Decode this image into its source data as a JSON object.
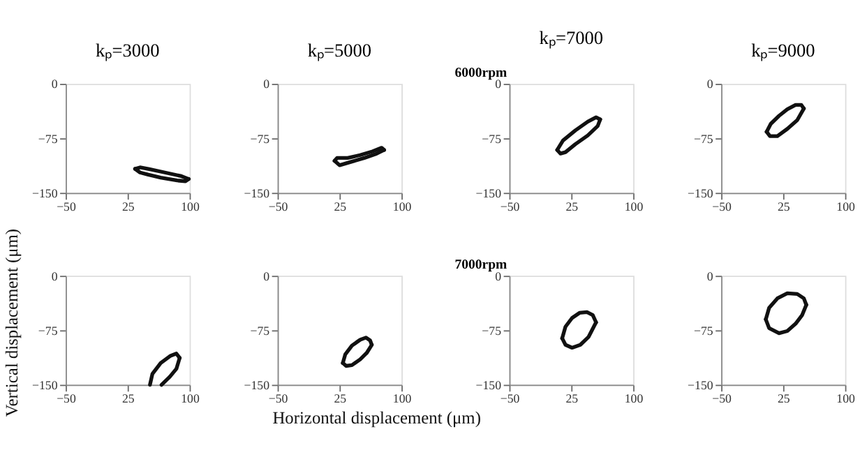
{
  "chart_data": [
    {
      "type": "line",
      "title": "kₚ=3000",
      "xlim": [
        -50,
        100
      ],
      "ylim": [
        -150,
        0
      ],
      "xticks": [
        -50,
        25,
        100
      ],
      "yticks": [
        -150,
        -75,
        0
      ],
      "grid": false,
      "legend": false,
      "line_style": "solid",
      "marker": "none",
      "series": [
        {
          "color": "#111111",
          "x": [
            34,
            40,
            50,
            70,
            90,
            99
          ],
          "values": [
            -117,
            -115,
            -117,
            -122,
            -127,
            -131
          ]
        },
        {
          "color": "#111111",
          "x": [
            34,
            40,
            50,
            65,
            85,
            95,
            99
          ],
          "values": [
            -117,
            -122,
            -125,
            -129,
            -133,
            -134,
            -131
          ]
        }
      ]
    },
    {
      "type": "line",
      "title": "kₚ=5000",
      "xlim": [
        -50,
        100
      ],
      "ylim": [
        -150,
        0
      ],
      "xticks": [
        -50,
        25,
        100
      ],
      "yticks": [
        -150,
        -75,
        0
      ],
      "grid": false,
      "legend": false,
      "line_style": "solid",
      "marker": "none",
      "series": [
        {
          "color": "#111111",
          "x": [
            19,
            22,
            35,
            50,
            65,
            76,
            79
          ],
          "values": [
            -106,
            -102,
            -102,
            -98,
            -93,
            -88,
            -91
          ]
        },
        {
          "color": "#111111",
          "x": [
            19,
            25,
            40,
            55,
            70,
            79
          ],
          "values": [
            -106,
            -112,
            -107,
            -102,
            -96,
            -91
          ]
        }
      ]
    },
    {
      "type": "line",
      "title": "kₚ=7000",
      "annotations": [
        "6000rpm"
      ],
      "xlim": [
        -50,
        100
      ],
      "ylim": [
        -150,
        0
      ],
      "xticks": [
        -50,
        25,
        100
      ],
      "yticks": [
        -150,
        -75,
        0
      ],
      "grid": false,
      "legend": false,
      "line_style": "solid",
      "marker": "none",
      "series": [
        {
          "color": "#111111",
          "x": [
            8,
            15,
            30,
            45,
            55,
            60
          ],
          "values": [
            -91,
            -78,
            -64,
            -52,
            -46,
            -49
          ]
        },
        {
          "color": "#111111",
          "x": [
            8,
            12,
            18,
            30,
            45,
            57,
            60
          ],
          "values": [
            -91,
            -96,
            -94,
            -83,
            -71,
            -58,
            -49
          ]
        }
      ]
    },
    {
      "type": "line",
      "title": "kₚ=9000",
      "xlim": [
        -50,
        100
      ],
      "ylim": [
        -150,
        0
      ],
      "xticks": [
        -50,
        25,
        100
      ],
      "yticks": [
        -150,
        -75,
        0
      ],
      "grid": false,
      "legend": false,
      "line_style": "solid",
      "marker": "none",
      "series": [
        {
          "color": "#111111",
          "x": [
            5,
            10,
            20,
            30,
            40,
            47,
            50
          ],
          "values": [
            -66,
            -55,
            -44,
            -35,
            -29,
            -29,
            -34
          ]
        },
        {
          "color": "#111111",
          "x": [
            5,
            9,
            18,
            30,
            42,
            50
          ],
          "values": [
            -66,
            -72,
            -72,
            -62,
            -50,
            -34
          ]
        }
      ]
    },
    {
      "type": "line",
      "ylabel": "Vertical displacement (μm)",
      "xlim": [
        -50,
        100
      ],
      "ylim": [
        -150,
        0
      ],
      "xticks": [
        -50,
        25,
        100
      ],
      "yticks": [
        -150,
        -75,
        0
      ],
      "grid": false,
      "legend": false,
      "line_style": "solid",
      "marker": "none",
      "series": [
        {
          "color": "#111111",
          "x": [
            52,
            55,
            65,
            77,
            84,
            88
          ],
          "values": [
            -150,
            -135,
            -120,
            -110,
            -107,
            -113
          ]
        },
        {
          "color": "#111111",
          "x": [
            66,
            76,
            84,
            88
          ],
          "values": [
            -150,
            -139,
            -128,
            -113
          ]
        }
      ]
    },
    {
      "type": "line",
      "xlabel": "Horizontal displacement (μm)",
      "xlim": [
        -50,
        100
      ],
      "ylim": [
        -150,
        0
      ],
      "xticks": [
        -50,
        25,
        100
      ],
      "yticks": [
        -150,
        -75,
        0
      ],
      "grid": false,
      "legend": false,
      "line_style": "solid",
      "marker": "none",
      "series": [
        {
          "color": "#111111",
          "x": [
            29,
            32,
            40,
            50,
            57,
            62,
            64
          ],
          "values": [
            -120,
            -108,
            -96,
            -88,
            -85,
            -89,
            -95
          ]
        },
        {
          "color": "#111111",
          "x": [
            29,
            33,
            40,
            50,
            58,
            64
          ],
          "values": [
            -120,
            -124,
            -123,
            -115,
            -106,
            -95
          ]
        }
      ]
    },
    {
      "type": "line",
      "annotations": [
        "7000rpm"
      ],
      "xlim": [
        -50,
        100
      ],
      "ylim": [
        -150,
        0
      ],
      "xticks": [
        -50,
        25,
        100
      ],
      "yticks": [
        -150,
        -75,
        0
      ],
      "grid": false,
      "legend": false,
      "line_style": "solid",
      "marker": "none",
      "series": [
        {
          "color": "#111111",
          "x": [
            14,
            18,
            26,
            35,
            44,
            51,
            55
          ],
          "values": [
            -86,
            -70,
            -58,
            -51,
            -50,
            -54,
            -64
          ]
        },
        {
          "color": "#111111",
          "x": [
            14,
            18,
            26,
            36,
            46,
            55
          ],
          "values": [
            -86,
            -95,
            -99,
            -95,
            -84,
            -64
          ]
        }
      ]
    },
    {
      "type": "line",
      "xlim": [
        -50,
        100
      ],
      "ylim": [
        -150,
        0
      ],
      "xticks": [
        -50,
        25,
        100
      ],
      "yticks": [
        -150,
        -75,
        0
      ],
      "grid": false,
      "legend": false,
      "line_style": "solid",
      "marker": "none",
      "series": [
        {
          "color": "#111111",
          "x": [
            4,
            8,
            18,
            30,
            42,
            50,
            53
          ],
          "values": [
            -60,
            -44,
            -31,
            -24,
            -25,
            -31,
            -40
          ]
        },
        {
          "color": "#111111",
          "x": [
            4,
            8,
            20,
            30,
            40,
            48,
            53
          ],
          "values": [
            -60,
            -72,
            -79,
            -76,
            -66,
            -54,
            -40
          ]
        }
      ]
    }
  ]
}
